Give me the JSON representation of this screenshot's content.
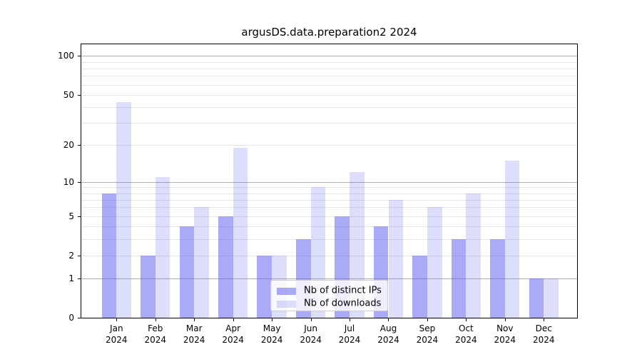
{
  "figure": {
    "background": "#ffffff"
  },
  "chart_data": {
    "type": "bar",
    "title": "argusDS.data.preparation2 2024",
    "categories": [
      "Jan",
      "Feb",
      "Mar",
      "Apr",
      "May",
      "Jun",
      "Jul",
      "Aug",
      "Sep",
      "Oct",
      "Nov",
      "Dec"
    ],
    "category_year": "2024",
    "series": [
      {
        "name": "Nb of distinct IPs",
        "values": [
          8,
          2,
          4,
          5,
          2,
          3,
          5,
          4,
          2,
          3,
          3,
          1
        ],
        "color": "rgba(85,85,238,0.5)"
      },
      {
        "name": "Nb of downloads",
        "values": [
          44,
          11,
          6,
          19,
          2,
          9,
          12,
          7,
          6,
          8,
          15,
          1
        ],
        "color": "rgba(85,85,238,0.2)"
      }
    ],
    "xlabel": "",
    "ylabel": "",
    "yscale": "log10(value+1)",
    "ytick_values": [
      100,
      50,
      20,
      10,
      5,
      2,
      1,
      0
    ],
    "ylim": [
      0,
      126
    ],
    "grid": {
      "on": true,
      "minor_values": [
        2,
        3,
        4,
        5,
        6,
        7,
        8,
        9,
        20,
        30,
        40,
        50,
        60,
        70,
        80,
        90
      ],
      "major_values": [
        1,
        10,
        100
      ],
      "minor_color": "#e6e6e6",
      "major_color": "#b0b0b0"
    },
    "legend": {
      "position": "lower center",
      "labels": [
        "Nb of distinct IPs",
        "Nb of downloads"
      ]
    }
  }
}
